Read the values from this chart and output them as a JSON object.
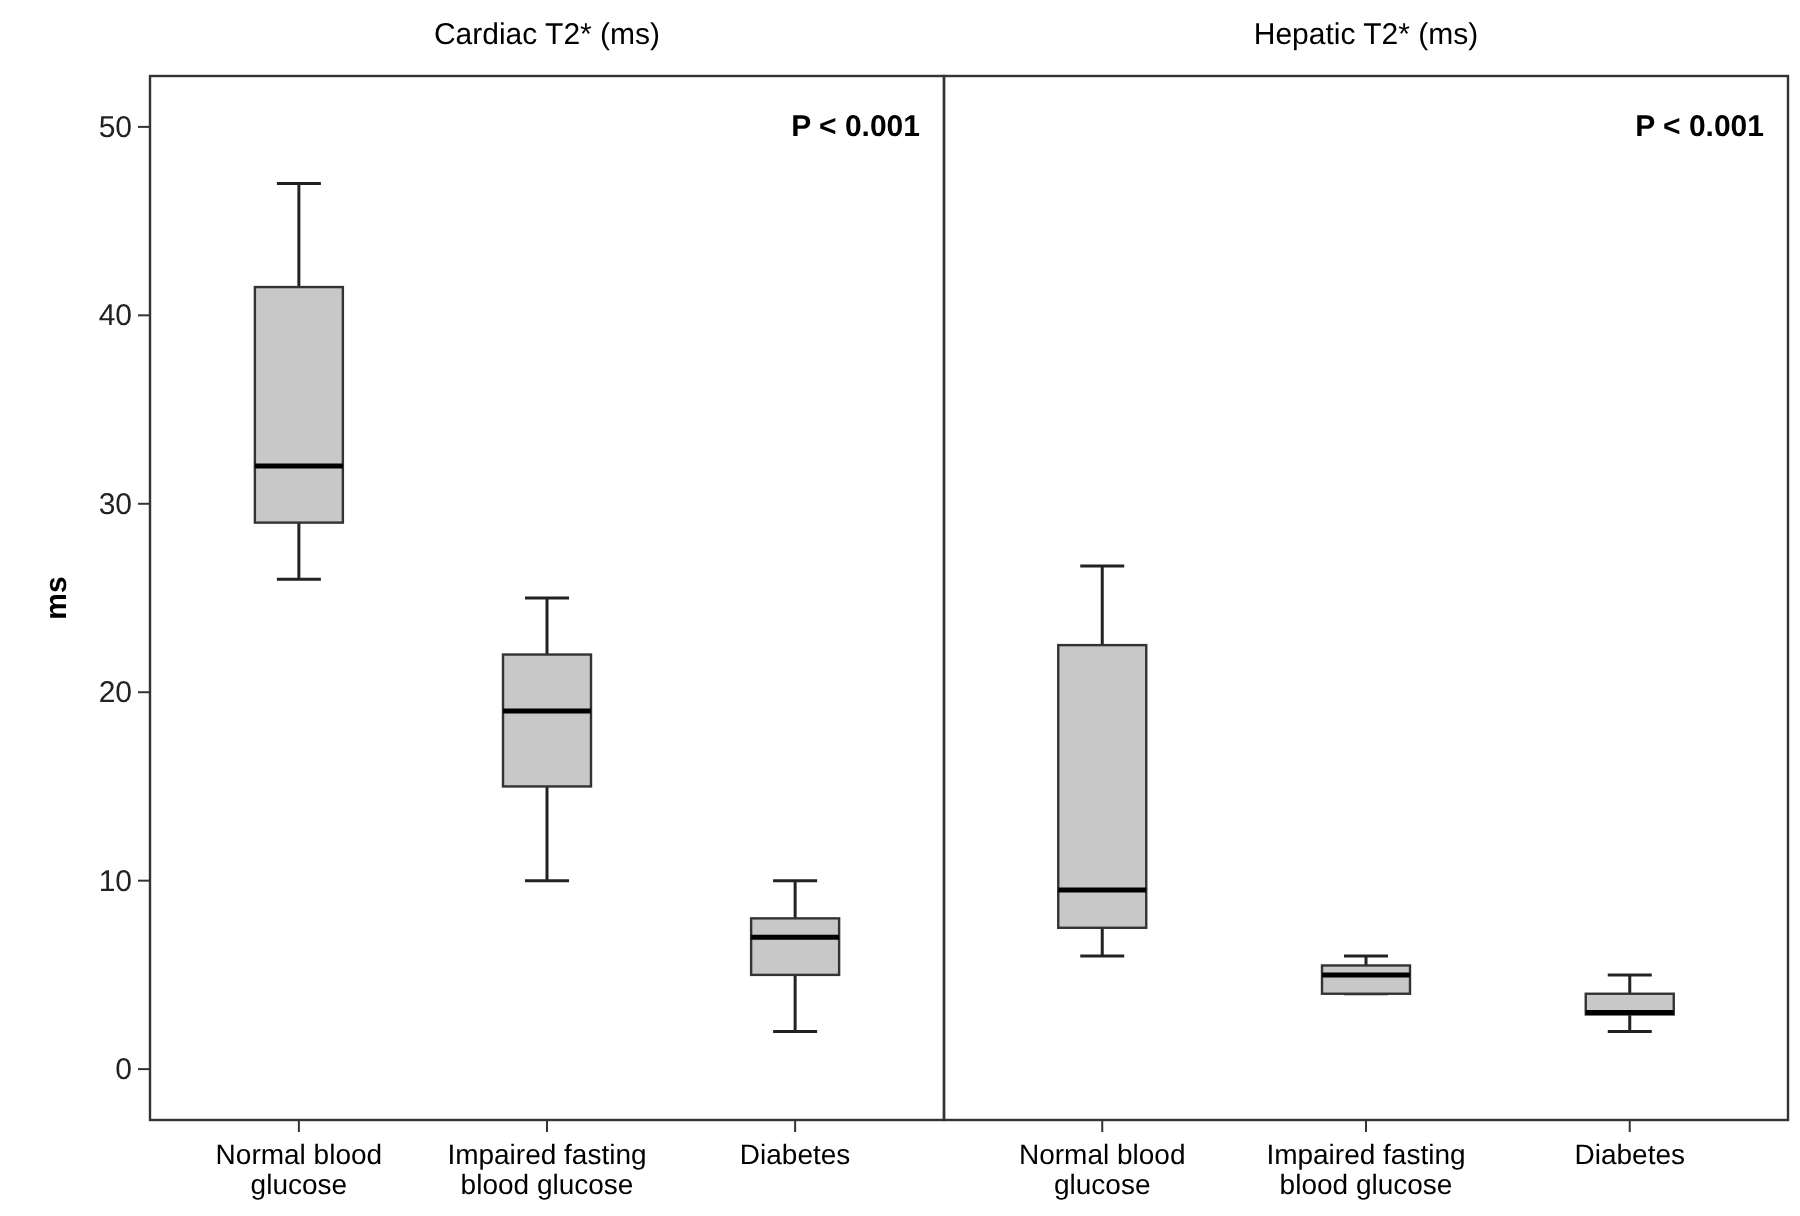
{
  "chart_data": [
    {
      "type": "box",
      "title": "Cardiac T2* (ms)",
      "ylabel": "ms",
      "categories": [
        "Normal blood glucose",
        "Impaired fasting blood glucose",
        "Diabetes"
      ],
      "color": "#c8c8c8",
      "boxes": [
        {
          "low": 26,
          "q1": 29,
          "median": 32,
          "q3": 41.5,
          "high": 47
        },
        {
          "low": 10,
          "q1": 15,
          "median": 19,
          "q3": 22,
          "high": 25
        },
        {
          "low": 2,
          "q1": 5,
          "median": 7,
          "q3": 8,
          "high": 10
        }
      ],
      "ylim": [
        -2.7,
        52.7
      ],
      "yticks": [
        0,
        10,
        20,
        30,
        40,
        50
      ],
      "annotations": [
        "P < 0.001"
      ]
    },
    {
      "type": "box",
      "title": "Hepatic T2* (ms)",
      "categories": [
        "Normal blood glucose",
        "Impaired fasting blood glucose",
        "Diabetes"
      ],
      "color": "#c8c8c8",
      "boxes": [
        {
          "low": 6,
          "q1": 7.5,
          "median": 9.5,
          "q3": 22.5,
          "high": 26.7
        },
        {
          "low": 4,
          "q1": 4,
          "median": 5,
          "q3": 5.5,
          "high": 6
        },
        {
          "low": 2,
          "q1": 2.9,
          "median": 3,
          "q3": 4,
          "high": 5
        }
      ],
      "ylim": [
        -2.7,
        52.7
      ],
      "yticks": [
        0,
        10,
        20,
        30,
        40,
        50
      ],
      "tick_labels": "x",
      "annotations": [
        "P < 0.001"
      ]
    }
  ]
}
